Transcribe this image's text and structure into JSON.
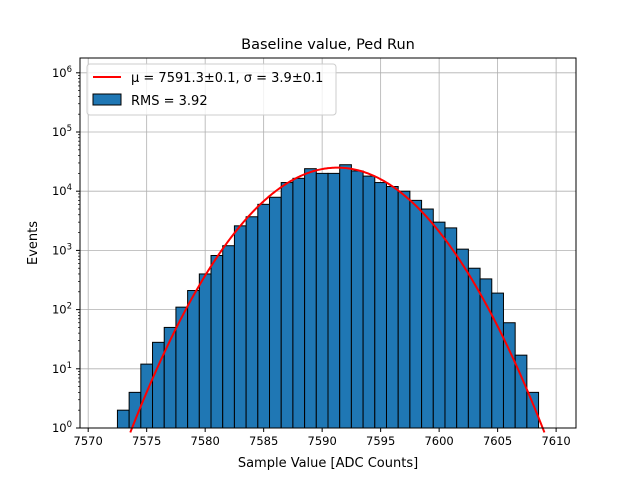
{
  "chart_data": {
    "type": "bar",
    "title": "Baseline value, Ped Run",
    "xlabel": "Sample Value [ADC Counts]",
    "ylabel": "Events",
    "xlim": [
      7569.3,
      7611.7
    ],
    "ylim_log10": [
      0,
      6.25
    ],
    "y_scale": "log",
    "grid": true,
    "legend_position": "top-left",
    "x_ticks": [
      7570,
      7575,
      7580,
      7585,
      7590,
      7595,
      7600,
      7605,
      7610
    ],
    "x_tick_labels": [
      "7570",
      "7575",
      "7580",
      "7585",
      "7590",
      "7595",
      "7600",
      "7605",
      "7610"
    ],
    "y_ticks": [
      0,
      1,
      2,
      3,
      4,
      5,
      6
    ],
    "y_tick_labels": [
      {
        "base": "10",
        "exp": "0"
      },
      {
        "base": "10",
        "exp": "1"
      },
      {
        "base": "10",
        "exp": "2"
      },
      {
        "base": "10",
        "exp": "3"
      },
      {
        "base": "10",
        "exp": "4"
      },
      {
        "base": "10",
        "exp": "5"
      },
      {
        "base": "10",
        "exp": "6"
      }
    ],
    "bin_width": 1,
    "bin_centers": [
      7573,
      7574,
      7575,
      7576,
      7577,
      7578,
      7579,
      7580,
      7581,
      7582,
      7583,
      7584,
      7585,
      7586,
      7587,
      7588,
      7589,
      7590,
      7591,
      7592,
      7593,
      7594,
      7595,
      7596,
      7597,
      7598,
      7599,
      7600,
      7601,
      7602,
      7603,
      7604,
      7605,
      7606,
      7607,
      7608
    ],
    "counts": [
      2,
      4,
      12,
      28,
      50,
      110,
      210,
      400,
      820,
      1200,
      2600,
      3700,
      6000,
      7900,
      14000,
      16500,
      24000,
      20000,
      20000,
      28000,
      22000,
      18000,
      14000,
      12000,
      10000,
      7000,
      5000,
      3000,
      2400,
      1050,
      500,
      330,
      190,
      60,
      17,
      4
    ],
    "bar_color": "#1f77b4",
    "bar_edge_color": "#000000",
    "fit": {
      "mu": 7591.3,
      "sigma": 3.9,
      "amplitude": 25000,
      "color": "#ff0000"
    },
    "legend": [
      {
        "label": "μ = 7591.3±0.1, σ = 3.9±0.1",
        "type": "line",
        "color": "#ff0000"
      },
      {
        "label": "RMS = 3.92",
        "type": "patch",
        "color": "#1f77b4"
      }
    ]
  }
}
